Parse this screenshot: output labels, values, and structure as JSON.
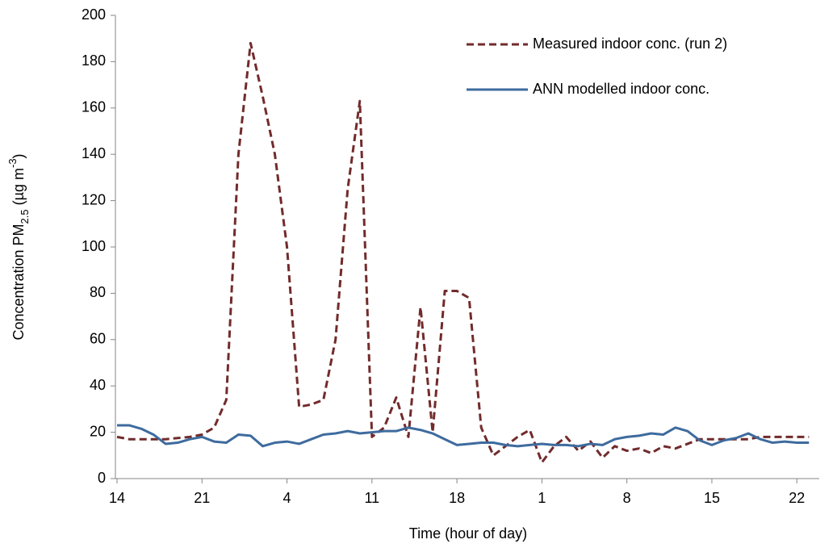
{
  "chart_data": {
    "type": "line",
    "x_label": "Time (hour of day)",
    "y_label": [
      "Concentration PM",
      "2.5",
      " (µg m",
      "-3",
      ")"
    ],
    "categories": [
      "14",
      null,
      null,
      null,
      null,
      null,
      null,
      "21",
      null,
      null,
      null,
      null,
      null,
      null,
      "4",
      null,
      null,
      null,
      null,
      null,
      null,
      "11",
      null,
      null,
      null,
      null,
      null,
      null,
      "18",
      null,
      null,
      null,
      null,
      null,
      null,
      "1",
      null,
      null,
      null,
      null,
      null,
      null,
      "8",
      null,
      null,
      null,
      null,
      null,
      null,
      "15",
      null,
      null,
      null,
      null,
      null,
      null,
      "22",
      null
    ],
    "ylim": [
      0,
      200
    ],
    "yticks": [
      0,
      20,
      40,
      60,
      80,
      100,
      120,
      140,
      160,
      180,
      200
    ],
    "grid": false,
    "legend": "upper right",
    "series": [
      {
        "name": "Measured indoor conc. (run 2)",
        "color": "#722b2b",
        "style": "dashed",
        "values": [
          18,
          17,
          17,
          17,
          17,
          17.5,
          18,
          19,
          22,
          34,
          140,
          188,
          165,
          140,
          100,
          31,
          32,
          34,
          60,
          125,
          163,
          18,
          22,
          35,
          18,
          74,
          20,
          81,
          81,
          78,
          22,
          10,
          14,
          18,
          21,
          7,
          14,
          18,
          12,
          16,
          9,
          14,
          12,
          13,
          11,
          14,
          13,
          15,
          17,
          17,
          17,
          17,
          17,
          18,
          18,
          18,
          18,
          18
        ]
      },
      {
        "name": "ANN modelled indoor conc.",
        "color": "#3e6b9e",
        "style": "solid",
        "values": [
          23,
          23,
          21.5,
          19,
          15,
          15.5,
          17,
          18,
          16,
          15.5,
          19,
          18.5,
          14,
          15.5,
          16,
          15,
          17,
          19,
          19.5,
          20.5,
          19.5,
          20,
          20.5,
          20.5,
          22,
          21,
          19.5,
          17,
          14.5,
          15,
          15.5,
          15.5,
          14.5,
          14,
          14.5,
          15,
          14.5,
          14.5,
          14,
          15,
          14.5,
          17,
          18,
          18.5,
          19.5,
          19,
          22,
          20.5,
          16.5,
          14.5,
          16.5,
          17.5,
          19.5,
          17,
          15.5,
          16,
          15.5,
          15.5
        ]
      }
    ]
  }
}
